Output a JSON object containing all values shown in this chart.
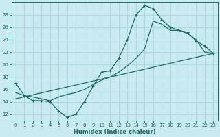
{
  "xlabel": "Humidex (Indice chaleur)",
  "xlim": [
    -0.5,
    23.5
  ],
  "ylim": [
    11,
    30
  ],
  "yticks": [
    12,
    14,
    16,
    18,
    20,
    22,
    24,
    26,
    28
  ],
  "xticks": [
    0,
    1,
    2,
    3,
    4,
    5,
    6,
    7,
    8,
    9,
    10,
    11,
    12,
    13,
    14,
    15,
    16,
    17,
    18,
    19,
    20,
    21,
    22,
    23
  ],
  "bg_color": "#c8eaf0",
  "line_color": "#1a6b5a",
  "grid_color": "#b0d8e0",
  "line1_x": [
    0,
    1,
    2,
    3,
    4,
    5,
    6,
    7,
    8,
    9,
    10,
    11,
    12,
    13,
    14,
    15,
    16,
    17,
    18,
    19,
    20,
    21,
    22,
    23
  ],
  "line1_y": [
    17.0,
    15.0,
    14.2,
    14.2,
    14.0,
    12.5,
    11.5,
    12.0,
    14.0,
    16.5,
    18.8,
    19.0,
    21.0,
    24.0,
    28.0,
    29.5,
    29.0,
    27.2,
    26.0,
    25.5,
    25.2,
    23.8,
    23.0,
    21.8
  ],
  "line2_x": [
    0,
    1,
    2,
    3,
    4,
    5,
    6,
    7,
    8,
    9,
    10,
    11,
    12,
    13,
    14,
    15,
    16,
    17,
    18,
    19,
    20,
    21,
    22,
    23
  ],
  "line2_y": [
    15.5,
    15.0,
    14.8,
    14.5,
    14.2,
    14.8,
    15.2,
    15.5,
    16.0,
    16.8,
    17.5,
    18.0,
    18.8,
    19.8,
    21.0,
    22.5,
    27.0,
    26.5,
    25.5,
    25.5,
    25.0,
    24.0,
    22.0,
    21.8
  ],
  "line3_x": [
    0,
    23
  ],
  "line3_y": [
    14.5,
    21.8
  ]
}
